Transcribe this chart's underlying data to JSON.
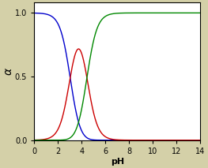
{
  "pka1": 3.03,
  "pka2": 4.44,
  "ph_min": 0,
  "ph_max": 14,
  "ylim": [
    0,
    1.08
  ],
  "yticks": [
    0,
    0.5,
    1.0
  ],
  "xticks": [
    0,
    2,
    4,
    6,
    8,
    10,
    12,
    14
  ],
  "xlabel": "pH",
  "ylabel": "α",
  "color_H2A": "#0000cc",
  "color_HA": "#cc0000",
  "color_A2": "#008800",
  "background_color": "#d4d0a8",
  "plot_bg": "#ffffff",
  "linewidth": 1.0
}
